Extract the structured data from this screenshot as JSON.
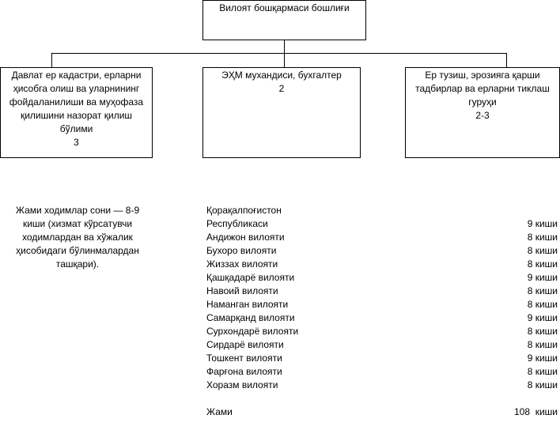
{
  "org_chart": {
    "head": {
      "title": "Вилоят бошқармаси бошлиғи"
    },
    "units": [
      {
        "title": "Давлат ер кадастри, ерларни ҳисобга олиш ва уларнининг фойдаланилиши ва муҳофаза қилишини назорат қилиш бўлими",
        "count": "3"
      },
      {
        "title": "ЭҲМ мухандиси, бухгалтер",
        "count": "2"
      },
      {
        "title": "Ер тузиш, эрозияга қарши тадбирлар ва ерларни тиклаш гуруҳи",
        "count": "2-3"
      }
    ]
  },
  "note": "Жами ходимлар сони — 8-9 киши (хизмат кўрсатувчи ходимлардан ва хўжалик ҳисобидаги бўлинмалардан ташқари).",
  "regions": {
    "header_line": "Қорақалпоғистон",
    "rows": [
      {
        "name": "Республикаси",
        "count": "9 киши"
      },
      {
        "name": "Андижон вилояти",
        "count": "8 киши"
      },
      {
        "name": "Бухоро вилояти",
        "count": "8 киши"
      },
      {
        "name": "Жиззах вилояти",
        "count": "8 киши"
      },
      {
        "name": "Қашқадарё вилояти",
        "count": "9 киши"
      },
      {
        "name": "Навоий вилояти",
        "count": "8 киши"
      },
      {
        "name": "Наманган вилояти",
        "count": "8 киши"
      },
      {
        "name": "Самарқанд вилояти",
        "count": "9 киши"
      },
      {
        "name": "Сурхондарё вилояти",
        "count": "8 киши"
      },
      {
        "name": "Сирдарё вилояти",
        "count": "8 киши"
      },
      {
        "name": "Тошкент вилояти",
        "count": "9 киши"
      },
      {
        "name": "Фарғона вилояти",
        "count": "8 киши"
      },
      {
        "name": "Хоразм вилояти",
        "count": "8 киши"
      }
    ],
    "total": {
      "label": "Жами",
      "count": "108  киши"
    }
  }
}
